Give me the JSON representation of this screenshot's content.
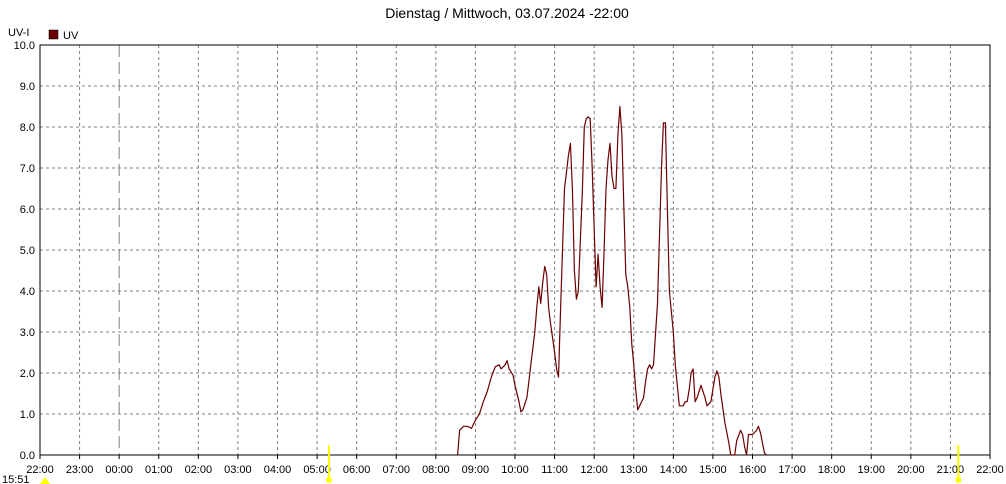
{
  "chart_data": {
    "type": "line",
    "title": "Dienstag / Mittwoch, 03.07.2024  -22:00",
    "ylabel": "UV-I",
    "ylim": [
      0,
      10
    ],
    "y_ticks": [
      "0.0",
      "1.0",
      "2.0",
      "3.0",
      "4.0",
      "5.0",
      "6.0",
      "7.0",
      "8.0",
      "9.0",
      "10.0"
    ],
    "x_ticks": [
      "22:00",
      "23:00",
      "00:00",
      "01:00",
      "02:00",
      "03:00",
      "04:00",
      "05:00",
      "06:00",
      "07:00",
      "08:00",
      "09:00",
      "10:00",
      "11:00",
      "12:00",
      "13:00",
      "14:00",
      "15:00",
      "16:00",
      "17:00",
      "18:00",
      "19:00",
      "20:00",
      "21:00",
      "22:00"
    ],
    "x_range_hours": [
      0,
      24
    ],
    "day_boundary_hour": 2,
    "grid": true,
    "legend_position": "top-left",
    "corner_label": "15:51",
    "markers_hours": [
      7.3,
      23.2
    ],
    "series": [
      {
        "name": "UV",
        "color": "#6b0000",
        "points": [
          [
            10.55,
            0.0
          ],
          [
            10.6,
            0.6
          ],
          [
            10.7,
            0.7
          ],
          [
            10.8,
            0.7
          ],
          [
            10.9,
            0.65
          ],
          [
            11.0,
            0.85
          ],
          [
            11.1,
            1.0
          ],
          [
            11.2,
            1.3
          ],
          [
            11.3,
            1.55
          ],
          [
            11.4,
            1.9
          ],
          [
            11.5,
            2.15
          ],
          [
            11.6,
            2.2
          ],
          [
            11.65,
            2.1
          ],
          [
            11.75,
            2.2
          ],
          [
            11.8,
            2.3
          ],
          [
            11.85,
            2.1
          ],
          [
            11.95,
            1.95
          ],
          [
            12.0,
            1.7
          ],
          [
            12.1,
            1.3
          ],
          [
            12.15,
            1.05
          ],
          [
            12.2,
            1.1
          ],
          [
            12.3,
            1.4
          ],
          [
            12.35,
            1.8
          ],
          [
            12.4,
            2.2
          ],
          [
            12.5,
            3.0
          ],
          [
            12.55,
            3.6
          ],
          [
            12.6,
            4.1
          ],
          [
            12.65,
            3.7
          ],
          [
            12.7,
            4.2
          ],
          [
            12.75,
            4.6
          ],
          [
            12.8,
            4.4
          ],
          [
            12.85,
            3.6
          ],
          [
            12.9,
            3.2
          ],
          [
            13.0,
            2.5
          ],
          [
            13.05,
            2.1
          ],
          [
            13.1,
            1.9
          ],
          [
            13.15,
            3.5
          ],
          [
            13.2,
            5.0
          ],
          [
            13.25,
            6.5
          ],
          [
            13.3,
            6.9
          ],
          [
            13.35,
            7.3
          ],
          [
            13.4,
            7.6
          ],
          [
            13.45,
            6.5
          ],
          [
            13.5,
            4.5
          ],
          [
            13.55,
            3.8
          ],
          [
            13.6,
            4.0
          ],
          [
            13.7,
            6.4
          ],
          [
            13.75,
            8.0
          ],
          [
            13.8,
            8.2
          ],
          [
            13.85,
            8.25
          ],
          [
            13.9,
            8.2
          ],
          [
            13.95,
            7.0
          ],
          [
            14.0,
            5.5
          ],
          [
            14.05,
            4.1
          ],
          [
            14.1,
            4.9
          ],
          [
            14.15,
            4.1
          ],
          [
            14.2,
            3.6
          ],
          [
            14.25,
            5.0
          ],
          [
            14.3,
            6.5
          ],
          [
            14.35,
            7.2
          ],
          [
            14.4,
            7.6
          ],
          [
            14.45,
            6.8
          ],
          [
            14.5,
            6.5
          ],
          [
            14.55,
            6.5
          ],
          [
            14.6,
            7.8
          ],
          [
            14.65,
            8.5
          ],
          [
            14.7,
            7.8
          ],
          [
            14.75,
            6.0
          ],
          [
            14.8,
            4.4
          ],
          [
            14.85,
            4.1
          ],
          [
            14.9,
            3.6
          ],
          [
            14.95,
            2.7
          ],
          [
            15.0,
            2.2
          ],
          [
            15.05,
            1.6
          ],
          [
            15.1,
            1.1
          ],
          [
            15.15,
            1.2
          ],
          [
            15.25,
            1.4
          ],
          [
            15.3,
            1.8
          ],
          [
            15.35,
            2.1
          ],
          [
            15.4,
            2.2
          ],
          [
            15.45,
            2.1
          ],
          [
            15.5,
            2.2
          ],
          [
            15.6,
            3.7
          ],
          [
            15.7,
            7.0
          ],
          [
            15.75,
            8.1
          ],
          [
            15.8,
            8.1
          ],
          [
            15.85,
            6.0
          ],
          [
            15.9,
            4.0
          ],
          [
            16.0,
            3.0
          ],
          [
            16.05,
            2.2
          ],
          [
            16.1,
            1.7
          ],
          [
            16.15,
            1.2
          ],
          [
            16.25,
            1.2
          ],
          [
            16.3,
            1.3
          ],
          [
            16.35,
            1.3
          ],
          [
            16.4,
            1.6
          ],
          [
            16.45,
            2.0
          ],
          [
            16.5,
            2.1
          ],
          [
            16.55,
            1.3
          ],
          [
            16.6,
            1.4
          ],
          [
            16.7,
            1.7
          ],
          [
            16.8,
            1.4
          ],
          [
            16.85,
            1.2
          ],
          [
            16.95,
            1.3
          ],
          [
            17.0,
            1.6
          ],
          [
            17.05,
            1.9
          ],
          [
            17.1,
            2.05
          ],
          [
            17.15,
            1.9
          ],
          [
            17.2,
            1.5
          ],
          [
            17.3,
            0.8
          ],
          [
            17.4,
            0.3
          ],
          [
            17.45,
            0.0
          ],
          [
            17.55,
            0.0
          ],
          [
            17.6,
            0.35
          ],
          [
            17.7,
            0.6
          ],
          [
            17.75,
            0.5
          ],
          [
            17.8,
            0.2
          ],
          [
            17.85,
            0.0
          ],
          [
            17.9,
            0.5
          ],
          [
            18.0,
            0.5
          ],
          [
            18.1,
            0.6
          ],
          [
            18.15,
            0.7
          ],
          [
            18.2,
            0.55
          ],
          [
            18.25,
            0.3
          ],
          [
            18.3,
            0.05
          ],
          [
            18.35,
            0.0
          ]
        ]
      }
    ]
  }
}
